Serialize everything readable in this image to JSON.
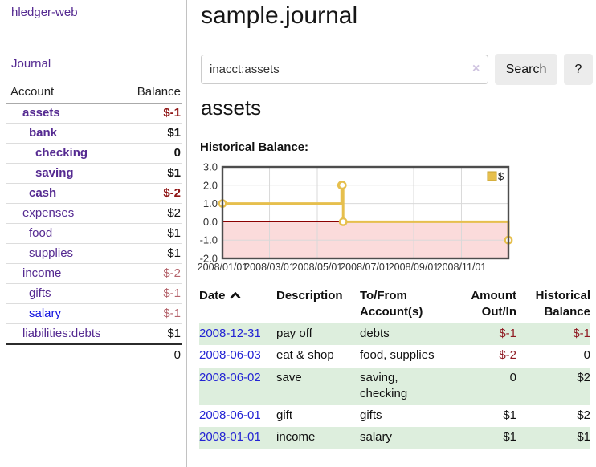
{
  "app": {
    "title": "hledger-web",
    "nav_journal": "Journal"
  },
  "sidebar": {
    "accounts_table": {
      "col_account": "Account",
      "col_balance": "Balance",
      "rows": [
        {
          "account": "assets",
          "depth": 1,
          "bold": true,
          "balance": "$-1",
          "neg": "strong"
        },
        {
          "account": "bank",
          "depth": 2,
          "bold": true,
          "balance": "$1"
        },
        {
          "account": "checking",
          "depth": 3,
          "bold": true,
          "balance": "0"
        },
        {
          "account": "saving",
          "depth": 3,
          "bold": true,
          "balance": "$1"
        },
        {
          "account": "cash",
          "depth": 2,
          "bold": true,
          "balance": "$-2",
          "neg": "strong"
        },
        {
          "account": "expenses",
          "depth": 1,
          "bold": false,
          "balance": "$2"
        },
        {
          "account": "food",
          "depth": 2,
          "bold": false,
          "balance": "$1"
        },
        {
          "account": "supplies",
          "depth": 2,
          "bold": false,
          "balance": "$1"
        },
        {
          "account": "income",
          "depth": 1,
          "bold": false,
          "balance": "$-2",
          "neg": "soft"
        },
        {
          "account": "gifts",
          "depth": 2,
          "bold": false,
          "balance": "$-1",
          "neg": "soft"
        },
        {
          "account": "salary",
          "depth": 2,
          "bold": false,
          "balance": "$-1",
          "neg": "soft",
          "unvisited": true
        },
        {
          "account": "liabilities:debts",
          "depth": 1,
          "bold": false,
          "balance": "$1"
        }
      ],
      "total": "0"
    }
  },
  "main": {
    "title": "sample.journal",
    "search": {
      "value": "inacct:assets",
      "clear_icon": "×",
      "search_button": "Search",
      "help_button": "?"
    },
    "account_heading": "assets",
    "chart_heading": "Historical Balance:"
  },
  "chart_data": {
    "type": "line",
    "title": "Historical Balance",
    "step": true,
    "series": [
      {
        "name": "$",
        "points": [
          {
            "x": "2008-01-01",
            "y": 1
          },
          {
            "x": "2008-06-01",
            "y": 2
          },
          {
            "x": "2008-06-02",
            "y": 2
          },
          {
            "x": "2008-06-03",
            "y": 0
          },
          {
            "x": "2008-12-31",
            "y": -1
          }
        ]
      }
    ],
    "x_start": "2008-01-01",
    "x_span_days": 365,
    "ylim": [
      -2,
      3
    ],
    "y_ticks": [
      {
        "label": "3.0",
        "v": 3
      },
      {
        "label": "2.0",
        "v": 2
      },
      {
        "label": "1.0",
        "v": 1
      },
      {
        "label": "0.0",
        "v": 0
      },
      {
        "label": "-1.0",
        "v": -1
      },
      {
        "label": "-2.0",
        "v": -2
      }
    ],
    "x_ticks": [
      {
        "label": "2008/01/01",
        "day": 0
      },
      {
        "label": "2008/03/01",
        "day": 60
      },
      {
        "label": "2008/05/01",
        "day": 121
      },
      {
        "label": "2008/07/01",
        "day": 182
      },
      {
        "label": "2008/09/01",
        "day": 244
      },
      {
        "label": "2008/11/01",
        "day": 305
      }
    ],
    "legend": {
      "label": "$",
      "position": "top-right"
    },
    "grid": true,
    "colors": {
      "line": "#e6bf4d",
      "marker_fill": "#ffffff",
      "negative_fill": "#fbdbdb",
      "zero_line": "#8b0000",
      "grid": "#d9d9d9",
      "border": "#4d4d4d",
      "legend_square": "#e6bf4d",
      "legend_square_border": "#c7a12e"
    }
  },
  "transactions": {
    "headers": {
      "date": "Date",
      "description": "Description",
      "accounts": "To/From Account(s)",
      "amount": "Amount Out/In",
      "balance": "Historical Balance"
    },
    "rows": [
      {
        "date": "2008-12-31",
        "description": "pay off",
        "accounts": "debts",
        "amount": "$-1",
        "balance": "$-1"
      },
      {
        "date": "2008-06-03",
        "description": "eat & shop",
        "accounts": "food, supplies",
        "amount": "$-2",
        "balance": "0"
      },
      {
        "date": "2008-06-02",
        "description": "save",
        "accounts": "saving, checking",
        "amount": "0",
        "balance": "$2"
      },
      {
        "date": "2008-06-01",
        "description": "gift",
        "accounts": "gifts",
        "amount": "$1",
        "balance": "$2"
      },
      {
        "date": "2008-01-01",
        "description": "income",
        "accounts": "salary",
        "amount": "$1",
        "balance": "$1"
      }
    ]
  }
}
